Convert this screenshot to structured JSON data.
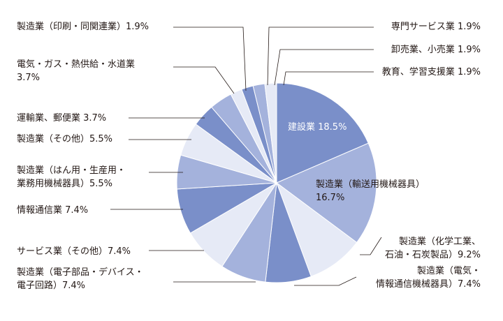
{
  "chart_data": {
    "type": "pie",
    "title": "",
    "start": "12 o'clock",
    "direction": "clockwise",
    "slices": [
      {
        "lines": [
          "建設業 18.5%"
        ],
        "value": 18.5,
        "color": "#7a8fc9"
      },
      {
        "lines": [
          "製造業（輸送用機械器具）",
          "16.7%"
        ],
        "value": 16.7,
        "color": "#a4b2dc"
      },
      {
        "lines": [
          "製造業（化学工業、",
          "石油・石炭製品）9.2%"
        ],
        "value": 9.2,
        "color": "#e6eaf6"
      },
      {
        "lines": [
          "製造業（電気・",
          "情報通信機械器具）7.4%"
        ],
        "value": 7.4,
        "color": "#7a8fc9"
      },
      {
        "lines": [
          "製造業（電子部品・デバイス・",
          "電子回路）7.4%"
        ],
        "value": 7.4,
        "color": "#a4b2dc"
      },
      {
        "lines": [
          "サービス業（その他）7.4%"
        ],
        "value": 7.4,
        "color": "#e6eaf6"
      },
      {
        "lines": [
          "情報通信業 7.4%"
        ],
        "value": 7.4,
        "color": "#7a8fc9"
      },
      {
        "lines": [
          "製造業（はん用・生産用・",
          "業務用機械器具）5.5%"
        ],
        "value": 5.5,
        "color": "#a4b2dc"
      },
      {
        "lines": [
          "製造業（その他）5.5%"
        ],
        "value": 5.5,
        "color": "#e6eaf6"
      },
      {
        "lines": [
          "運輸業、郵便業 3.7%"
        ],
        "value": 3.7,
        "color": "#7a8fc9"
      },
      {
        "lines": [
          "電気・ガス・熱供給・水道業",
          "3.7%"
        ],
        "value": 3.7,
        "color": "#a4b2dc"
      },
      {
        "lines": [
          "製造業（印刷・同関連業）1.9%"
        ],
        "value": 1.9,
        "color": "#e6eaf6"
      },
      {
        "lines": [
          "専門サービス業 1.9%"
        ],
        "value": 1.9,
        "color": "#7a8fc9"
      },
      {
        "lines": [
          "卸売業、小売業 1.9%"
        ],
        "value": 1.9,
        "color": "#a4b2dc"
      },
      {
        "lines": [
          "教育、学習支援業 1.9%"
        ],
        "value": 1.9,
        "color": "#e6eaf6"
      }
    ]
  }
}
